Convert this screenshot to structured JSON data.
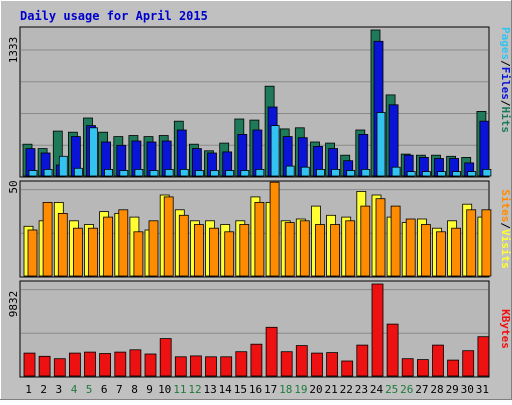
{
  "title": "Daily usage for April 2015",
  "colors": {
    "frame_bg": "#c0c0c0",
    "plot_bg": "#b8b8b8",
    "title": "#0000cc",
    "hits": "#1f7a5a",
    "files": "#0a14d6",
    "pages": "#33c3f0",
    "visits": "#ffff33",
    "sites": "#ff8c00",
    "kbytes": "#ee1111",
    "weekend_day": "#1f7a3a",
    "weekday_day": "#000000"
  },
  "right_labels": {
    "pages": "Pages",
    "files": "Files",
    "hits": "Hits",
    "sites": "Sites",
    "visits": "Visits",
    "kbytes": "KBytes",
    "separator": "/"
  },
  "chart_data": [
    {
      "type": "bar",
      "panel": "hits-files-pages",
      "ymax_label": "1333",
      "ylim": [
        0,
        1333
      ],
      "series": [
        {
          "name": "Hits",
          "values": [
            290,
            250,
            410,
            400,
            530,
            400,
            360,
            370,
            360,
            370,
            500,
            290,
            230,
            300,
            520,
            510,
            820,
            430,
            440,
            310,
            300,
            190,
            420,
            1333,
            740,
            200,
            190,
            190,
            180,
            170,
            590
          ]
        },
        {
          "name": "Files",
          "values": [
            250,
            210,
            100,
            360,
            460,
            310,
            280,
            320,
            310,
            320,
            420,
            250,
            210,
            220,
            380,
            420,
            630,
            360,
            350,
            270,
            250,
            140,
            380,
            1230,
            650,
            190,
            170,
            160,
            160,
            120,
            500
          ]
        },
        {
          "name": "Pages",
          "values": [
            50,
            60,
            180,
            70,
            440,
            60,
            50,
            60,
            50,
            60,
            60,
            50,
            50,
            50,
            50,
            60,
            460,
            90,
            80,
            60,
            60,
            50,
            60,
            580,
            80,
            40,
            40,
            40,
            40,
            40,
            60
          ]
        }
      ]
    },
    {
      "type": "bar",
      "panel": "visits-sites",
      "ymax_label": "50",
      "ylim": [
        0,
        50
      ],
      "series": [
        {
          "name": "Visits",
          "values": [
            27,
            30,
            40,
            30,
            28,
            35,
            34,
            32,
            25,
            44,
            36,
            30,
            30,
            28,
            30,
            43,
            40,
            30,
            31,
            38,
            33,
            32,
            46,
            44,
            32,
            29,
            31,
            26,
            30,
            39,
            32
          ]
        },
        {
          "name": "Sites",
          "values": [
            25,
            40,
            34,
            26,
            26,
            32,
            36,
            24,
            30,
            43,
            33,
            28,
            26,
            24,
            28,
            40,
            51,
            29,
            30,
            28,
            28,
            30,
            38,
            42,
            38,
            31,
            28,
            24,
            26,
            36,
            36
          ]
        }
      ]
    },
    {
      "type": "bar",
      "panel": "kbytes",
      "ymax_label": "9832",
      "ylim": [
        0,
        9832
      ],
      "series": [
        {
          "name": "KBytes",
          "values": [
            2450,
            2100,
            1850,
            2450,
            2550,
            2400,
            2550,
            2800,
            2350,
            4000,
            2050,
            2150,
            2050,
            2050,
            2600,
            3400,
            5200,
            2600,
            3250,
            2450,
            2500,
            1600,
            3300,
            9832,
            5550,
            1850,
            1750,
            3300,
            1700,
            2700,
            4200
          ]
        }
      ]
    }
  ],
  "days": [
    "1",
    "2",
    "3",
    "4",
    "5",
    "6",
    "7",
    "8",
    "9",
    "10",
    "11",
    "12",
    "13",
    "14",
    "15",
    "16",
    "17",
    "18",
    "19",
    "20",
    "21",
    "22",
    "23",
    "24",
    "25",
    "26",
    "27",
    "28",
    "29",
    "30",
    "31"
  ],
  "weekend_days": [
    4,
    5,
    11,
    12,
    18,
    19,
    25,
    26
  ]
}
